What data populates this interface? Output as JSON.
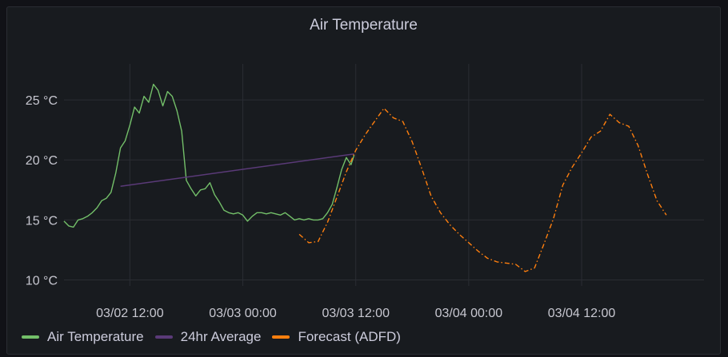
{
  "panel": {
    "title": "Air Temperature"
  },
  "colors": {
    "background": "#181b1f",
    "grid": "#2a2d33",
    "air_temperature": "#73bf69",
    "average": "#5a3a78",
    "forecast": "#ff7f0e"
  },
  "chart_data": {
    "type": "line",
    "title": "Air Temperature",
    "xlabel": "",
    "ylabel": "",
    "x_ticks": [
      "03/02 12:00",
      "03/03 00:00",
      "03/03 12:00",
      "03/04 00:00",
      "03/04 12:00"
    ],
    "y_ticks": [
      "10 °C",
      "15 °C",
      "20 °C",
      "25 °C"
    ],
    "ylim": [
      9.5,
      28
    ],
    "xlim": [
      "03/02 05:00",
      "03/05 01:00"
    ],
    "grid": true,
    "legend_position": "bottom-left",
    "series": [
      {
        "name": "Air Temperature",
        "style": "solid",
        "points": [
          [
            "03/02 05:00",
            14.9
          ],
          [
            "03/02 05:30",
            14.5
          ],
          [
            "03/02 06:00",
            14.4
          ],
          [
            "03/02 06:30",
            15.0
          ],
          [
            "03/02 07:00",
            15.1
          ],
          [
            "03/02 07:30",
            15.3
          ],
          [
            "03/02 08:00",
            15.6
          ],
          [
            "03/02 08:30",
            16.0
          ],
          [
            "03/02 09:00",
            16.6
          ],
          [
            "03/02 09:30",
            16.8
          ],
          [
            "03/02 10:00",
            17.3
          ],
          [
            "03/02 10:30",
            18.9
          ],
          [
            "03/02 11:00",
            21.0
          ],
          [
            "03/02 11:30",
            21.6
          ],
          [
            "03/02 12:00",
            22.9
          ],
          [
            "03/02 12:30",
            24.4
          ],
          [
            "03/02 13:00",
            23.9
          ],
          [
            "03/02 13:30",
            25.3
          ],
          [
            "03/02 14:00",
            24.8
          ],
          [
            "03/02 14:30",
            26.3
          ],
          [
            "03/02 15:00",
            25.8
          ],
          [
            "03/02 15:30",
            24.5
          ],
          [
            "03/02 16:00",
            25.7
          ],
          [
            "03/02 16:30",
            25.3
          ],
          [
            "03/02 17:00",
            24.1
          ],
          [
            "03/02 17:30",
            22.4
          ],
          [
            "03/02 18:00",
            18.3
          ],
          [
            "03/02 18:30",
            17.6
          ],
          [
            "03/02 19:00",
            17.0
          ],
          [
            "03/02 19:30",
            17.5
          ],
          [
            "03/02 20:00",
            17.6
          ],
          [
            "03/02 20:30",
            18.1
          ],
          [
            "03/02 21:00",
            17.1
          ],
          [
            "03/02 21:30",
            16.5
          ],
          [
            "03/02 22:00",
            15.8
          ],
          [
            "03/02 22:30",
            15.6
          ],
          [
            "03/02 23:00",
            15.5
          ],
          [
            "03/02 23:30",
            15.6
          ],
          [
            "03/03 00:00",
            15.4
          ],
          [
            "03/03 00:30",
            14.9
          ],
          [
            "03/03 01:00",
            15.3
          ],
          [
            "03/03 01:30",
            15.6
          ],
          [
            "03/03 02:00",
            15.6
          ],
          [
            "03/03 02:30",
            15.5
          ],
          [
            "03/03 03:00",
            15.6
          ],
          [
            "03/03 03:30",
            15.5
          ],
          [
            "03/03 04:00",
            15.4
          ],
          [
            "03/03 04:30",
            15.6
          ],
          [
            "03/03 05:00",
            15.3
          ],
          [
            "03/03 05:30",
            15.0
          ],
          [
            "03/03 06:00",
            15.1
          ],
          [
            "03/03 06:30",
            15.0
          ],
          [
            "03/03 07:00",
            15.1
          ],
          [
            "03/03 07:30",
            15.0
          ],
          [
            "03/03 08:00",
            15.0
          ],
          [
            "03/03 08:30",
            15.1
          ],
          [
            "03/03 09:00",
            15.6
          ],
          [
            "03/03 09:30",
            16.3
          ],
          [
            "03/03 10:00",
            17.7
          ],
          [
            "03/03 10:30",
            19.2
          ],
          [
            "03/03 11:00",
            20.2
          ],
          [
            "03/03 11:30",
            19.6
          ],
          [
            "03/03 11:50",
            20.4
          ]
        ]
      },
      {
        "name": "24hr Average",
        "style": "solid",
        "points": [
          [
            "03/02 11:00",
            17.8
          ],
          [
            "03/03 11:50",
            20.5
          ]
        ]
      },
      {
        "name": "Forecast (ADFD)",
        "style": "dash-dot",
        "points": [
          [
            "03/03 06:00",
            13.8
          ],
          [
            "03/03 07:00",
            13.1
          ],
          [
            "03/03 08:00",
            13.2
          ],
          [
            "03/03 09:00",
            14.8
          ],
          [
            "03/03 10:00",
            16.9
          ],
          [
            "03/03 11:00",
            19.0
          ],
          [
            "03/03 12:00",
            20.8
          ],
          [
            "03/03 13:00",
            22.1
          ],
          [
            "03/03 14:00",
            23.2
          ],
          [
            "03/03 15:00",
            24.3
          ],
          [
            "03/03 16:00",
            23.5
          ],
          [
            "03/03 17:00",
            23.2
          ],
          [
            "03/03 18:00",
            21.5
          ],
          [
            "03/03 19:00",
            19.3
          ],
          [
            "03/03 20:00",
            17.0
          ],
          [
            "03/03 21:00",
            15.6
          ],
          [
            "03/03 22:00",
            14.6
          ],
          [
            "03/03 23:00",
            13.8
          ],
          [
            "03/04 00:00",
            13.1
          ],
          [
            "03/04 01:00",
            12.4
          ],
          [
            "03/04 02:00",
            11.8
          ],
          [
            "03/04 03:00",
            11.5
          ],
          [
            "03/04 04:00",
            11.4
          ],
          [
            "03/04 05:00",
            11.3
          ],
          [
            "03/04 06:00",
            10.7
          ],
          [
            "03/04 07:00",
            11.0
          ],
          [
            "03/04 08:00",
            13.0
          ],
          [
            "03/04 09:00",
            15.1
          ],
          [
            "03/04 10:00",
            17.9
          ],
          [
            "03/04 11:00",
            19.4
          ],
          [
            "03/04 12:00",
            20.6
          ],
          [
            "03/04 13:00",
            21.9
          ],
          [
            "03/04 14:00",
            22.4
          ],
          [
            "03/04 15:00",
            23.8
          ],
          [
            "03/04 16:00",
            23.1
          ],
          [
            "03/04 17:00",
            22.8
          ],
          [
            "03/04 18:00",
            21.2
          ],
          [
            "03/04 19:00",
            18.8
          ],
          [
            "03/04 20:00",
            16.6
          ],
          [
            "03/04 21:00",
            15.4
          ]
        ]
      }
    ]
  }
}
